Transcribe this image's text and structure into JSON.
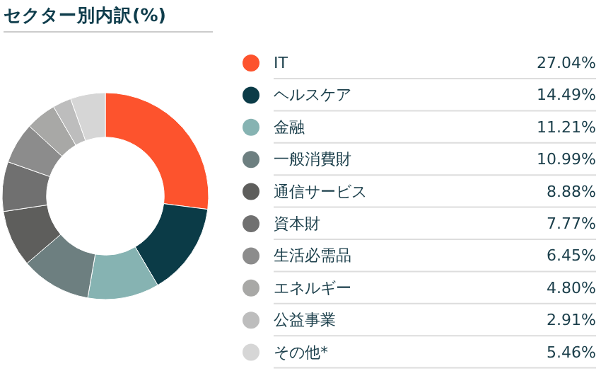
{
  "chart_data": {
    "type": "donut",
    "title": "セクター別内訳(%)",
    "categories": [
      "IT",
      "ヘルスケア",
      "金融",
      "一般消費財",
      "通信サービス",
      "資本財",
      "生活必需品",
      "エネルギー",
      "公益事業",
      "その他*"
    ],
    "values": [
      27.04,
      14.49,
      11.21,
      10.99,
      8.88,
      7.77,
      6.45,
      4.8,
      2.91,
      5.46
    ],
    "colors": [
      "#fd532d",
      "#0b3b47",
      "#86b3b2",
      "#6d7f80",
      "#5e5e5c",
      "#707070",
      "#8c8c8c",
      "#a8a8a6",
      "#bdbdbd",
      "#d6d6d6"
    ],
    "value_labels": [
      "27.04%",
      "14.49%",
      "11.21%",
      "10.99%",
      "8.88%",
      "7.77%",
      "6.45%",
      "4.80%",
      "2.91%",
      "5.46%"
    ],
    "legend": "right"
  }
}
